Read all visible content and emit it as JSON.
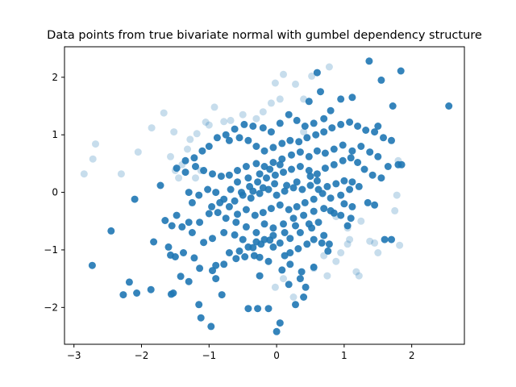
{
  "chart_data": {
    "type": "scatter",
    "title": "Data points from true bivariate normal with gumbel dependency structure",
    "xlabel": "",
    "ylabel": "",
    "xlim": [
      -3.14,
      2.78
    ],
    "ylim": [
      -2.64,
      2.53
    ],
    "xticks": [
      -3,
      -2,
      -1,
      0,
      1,
      2
    ],
    "yticks": [
      -2,
      -1,
      0,
      1,
      2
    ],
    "xtick_labels": [
      "−3",
      "−2",
      "−1",
      "0",
      "1",
      "2"
    ],
    "ytick_labels": [
      "−2",
      "−1",
      "0",
      "1",
      "2"
    ],
    "grid": false,
    "legend": null,
    "point_color": "#1f77b4",
    "series": [
      {
        "opacity": 0.9,
        "points": [
          [
            -2.73,
            -1.27
          ],
          [
            -2.27,
            -1.78
          ],
          [
            -2.18,
            -1.56
          ],
          [
            -2.07,
            -1.75
          ],
          [
            -1.86,
            -1.69
          ],
          [
            -1.56,
            -1.77
          ],
          [
            -1.53,
            -1.75
          ],
          [
            -1.15,
            -1.95
          ],
          [
            -1.12,
            -2.18
          ],
          [
            -0.97,
            -2.33
          ],
          [
            -0.81,
            -1.78
          ],
          [
            -1.3,
            -1.55
          ],
          [
            -1.42,
            -1.46
          ],
          [
            -0.9,
            -1.5
          ],
          [
            -0.95,
            -1.36
          ],
          [
            -0.78,
            -1.25
          ],
          [
            -1.82,
            -0.86
          ],
          [
            -1.6,
            -0.95
          ],
          [
            -1.57,
            -1.09
          ],
          [
            -1.5,
            -1.12
          ],
          [
            -1.38,
            -1.05
          ],
          [
            -1.22,
            -1.14
          ],
          [
            -1.14,
            -1.32
          ],
          [
            -0.9,
            -1.27
          ],
          [
            -0.47,
            -1.12
          ],
          [
            -0.33,
            -1.1
          ],
          [
            -0.25,
            -1.13
          ],
          [
            0.08,
            -1.35
          ],
          [
            0.2,
            -1.25
          ],
          [
            0.35,
            -1.5
          ],
          [
            0.43,
            -1.65
          ],
          [
            0.37,
            -1.38
          ],
          [
            0.55,
            -1.3
          ],
          [
            0.2,
            -1.05
          ],
          [
            0.32,
            -0.98
          ],
          [
            0.45,
            -0.9
          ],
          [
            0.55,
            -0.82
          ],
          [
            0.67,
            -0.88
          ],
          [
            0.76,
            -1.02
          ],
          [
            0.78,
            -0.9
          ],
          [
            0.7,
            -0.75
          ],
          [
            0.52,
            -0.62
          ],
          [
            0.35,
            -0.7
          ],
          [
            0.2,
            -0.8
          ],
          [
            0.05,
            -0.88
          ],
          [
            -0.1,
            -0.83
          ],
          [
            -0.23,
            -0.9
          ],
          [
            -0.35,
            -0.96
          ],
          [
            -0.5,
            -0.82
          ],
          [
            -0.62,
            -0.74
          ],
          [
            -0.78,
            -0.7
          ],
          [
            -0.95,
            -0.8
          ],
          [
            -1.08,
            -0.87
          ],
          [
            -1.25,
            -0.7
          ],
          [
            -1.4,
            -0.6
          ],
          [
            -1.55,
            -0.58
          ],
          [
            -1.65,
            -0.49
          ],
          [
            -1.48,
            -0.4
          ],
          [
            -1.3,
            -0.52
          ],
          [
            -1.14,
            -0.52
          ],
          [
            -1.0,
            -0.37
          ],
          [
            -0.87,
            -0.35
          ],
          [
            -0.75,
            -0.45
          ],
          [
            -0.6,
            -0.52
          ],
          [
            -0.45,
            -0.6
          ],
          [
            -0.3,
            -0.7
          ],
          [
            -0.18,
            -0.55
          ],
          [
            -0.05,
            -0.62
          ],
          [
            0.1,
            -0.55
          ],
          [
            0.25,
            -0.45
          ],
          [
            0.4,
            -0.4
          ],
          [
            0.55,
            -0.33
          ],
          [
            0.7,
            -0.28
          ],
          [
            0.85,
            -0.36
          ],
          [
            1.0,
            -0.2
          ],
          [
            1.12,
            -0.25
          ],
          [
            1.35,
            -0.18
          ],
          [
            1.45,
            -0.22
          ],
          [
            1.6,
            -0.82
          ],
          [
            1.7,
            -0.82
          ],
          [
            -2.45,
            -0.67
          ],
          [
            -2.1,
            -0.12
          ],
          [
            -1.72,
            0.12
          ],
          [
            -1.3,
            0.0
          ],
          [
            -1.25,
            -0.18
          ],
          [
            -1.15,
            -0.05
          ],
          [
            -1.02,
            0.05
          ],
          [
            -0.9,
            0.0
          ],
          [
            -0.78,
            -0.12
          ],
          [
            -0.62,
            -0.15
          ],
          [
            -0.5,
            -0.05
          ],
          [
            -0.38,
            -0.1
          ],
          [
            -0.25,
            -0.02
          ],
          [
            -0.12,
            0.05
          ],
          [
            0.0,
            -0.05
          ],
          [
            0.12,
            0.02
          ],
          [
            0.25,
            0.08
          ],
          [
            0.38,
            0.05
          ],
          [
            0.5,
            0.12
          ],
          [
            0.62,
            0.05
          ],
          [
            0.75,
            0.1
          ],
          [
            0.88,
            0.15
          ],
          [
            1.0,
            0.2
          ],
          [
            1.12,
            0.18
          ],
          [
            1.22,
            0.1
          ],
          [
            1.08,
            0.05
          ],
          [
            0.95,
            -0.05
          ],
          [
            0.8,
            -0.1
          ],
          [
            0.68,
            -0.02
          ],
          [
            0.55,
            -0.12
          ],
          [
            0.42,
            -0.18
          ],
          [
            0.3,
            -0.25
          ],
          [
            0.18,
            -0.3
          ],
          [
            0.05,
            -0.22
          ],
          [
            -0.08,
            -0.28
          ],
          [
            -0.2,
            -0.35
          ],
          [
            -0.32,
            -0.4
          ],
          [
            -0.45,
            -0.3
          ],
          [
            -0.58,
            -0.38
          ],
          [
            -0.7,
            -0.25
          ],
          [
            -0.84,
            -0.18
          ],
          [
            -0.96,
            -0.25
          ],
          [
            -0.4,
            0.1
          ],
          [
            -0.28,
            0.18
          ],
          [
            -0.15,
            0.25
          ],
          [
            -0.02,
            0.3
          ],
          [
            0.1,
            0.35
          ],
          [
            0.22,
            0.4
          ],
          [
            0.35,
            0.45
          ],
          [
            0.48,
            0.38
          ],
          [
            0.6,
            0.32
          ],
          [
            0.72,
            0.42
          ],
          [
            0.85,
            0.48
          ],
          [
            0.98,
            0.55
          ],
          [
            1.1,
            0.6
          ],
          [
            1.2,
            0.52
          ],
          [
            1.3,
            0.4
          ],
          [
            1.42,
            0.3
          ],
          [
            1.55,
            0.25
          ],
          [
            1.65,
            0.45
          ],
          [
            1.8,
            0.48
          ],
          [
            1.5,
            0.62
          ],
          [
            1.38,
            0.7
          ],
          [
            1.25,
            0.8
          ],
          [
            1.12,
            0.72
          ],
          [
            0.98,
            0.82
          ],
          [
            0.85,
            0.75
          ],
          [
            0.72,
            0.68
          ],
          [
            0.6,
            0.72
          ],
          [
            0.48,
            0.62
          ],
          [
            0.35,
            0.7
          ],
          [
            0.22,
            0.65
          ],
          [
            0.08,
            0.58
          ],
          [
            -0.05,
            0.52
          ],
          [
            -0.18,
            0.45
          ],
          [
            -0.3,
            0.5
          ],
          [
            -0.45,
            0.45
          ],
          [
            -0.58,
            0.38
          ],
          [
            -0.7,
            0.3
          ],
          [
            -0.82,
            0.28
          ],
          [
            -0.95,
            0.32
          ],
          [
            -1.08,
            0.38
          ],
          [
            -1.2,
            0.45
          ],
          [
            -1.35,
            0.35
          ],
          [
            -1.48,
            0.42
          ],
          [
            -0.7,
            0.9
          ],
          [
            -0.55,
            0.95
          ],
          [
            -0.42,
            0.9
          ],
          [
            -0.3,
            0.8
          ],
          [
            -0.18,
            0.72
          ],
          [
            -0.05,
            0.78
          ],
          [
            0.08,
            0.85
          ],
          [
            0.2,
            0.9
          ],
          [
            0.33,
            0.88
          ],
          [
            0.45,
            0.95
          ],
          [
            0.58,
            1.0
          ],
          [
            0.7,
            1.05
          ],
          [
            0.82,
            1.12
          ],
          [
            0.95,
            1.18
          ],
          [
            1.08,
            1.22
          ],
          [
            1.2,
            1.15
          ],
          [
            1.32,
            1.08
          ],
          [
            1.45,
            1.05
          ],
          [
            1.58,
            0.95
          ],
          [
            1.7,
            0.9
          ],
          [
            1.5,
            1.15
          ],
          [
            1.55,
            1.95
          ],
          [
            1.72,
            1.5
          ],
          [
            1.84,
            2.11
          ],
          [
            1.37,
            2.28
          ],
          [
            1.12,
            1.65
          ],
          [
            0.95,
            1.62
          ],
          [
            0.8,
            1.42
          ],
          [
            0.7,
            1.28
          ],
          [
            0.55,
            1.2
          ],
          [
            0.42,
            1.15
          ],
          [
            0.3,
            1.25
          ],
          [
            0.18,
            1.35
          ],
          [
            0.05,
            1.2
          ],
          [
            -0.08,
            1.05
          ],
          [
            -0.2,
            1.12
          ],
          [
            -0.35,
            1.15
          ],
          [
            -0.48,
            1.18
          ],
          [
            -0.62,
            1.1
          ],
          [
            -0.75,
            1.0
          ],
          [
            -0.88,
            0.95
          ],
          [
            -1.0,
            0.8
          ],
          [
            -1.1,
            0.72
          ],
          [
            -1.22,
            0.6
          ],
          [
            -1.35,
            0.55
          ],
          [
            0.65,
            1.75
          ],
          [
            0.6,
            2.08
          ],
          [
            0.48,
            1.58
          ],
          [
            2.55,
            1.5
          ],
          [
            1.85,
            0.48
          ],
          [
            0.8,
            -0.32
          ],
          [
            0.95,
            -0.4
          ],
          [
            1.1,
            -0.45
          ],
          [
            1.05,
            -0.58
          ],
          [
            0.62,
            -0.52
          ],
          [
            0.48,
            -0.55
          ],
          [
            0.28,
            -0.58
          ],
          [
            0.12,
            -0.7
          ],
          [
            -0.05,
            -0.75
          ],
          [
            -0.18,
            -0.82
          ],
          [
            -0.3,
            -0.86
          ],
          [
            -0.42,
            -0.95
          ],
          [
            -0.55,
            -1.02
          ],
          [
            -0.7,
            -1.05
          ],
          [
            -0.05,
            -0.95
          ],
          [
            0.12,
            -1.1
          ],
          [
            -0.12,
            -1.2
          ],
          [
            -0.25,
            -1.45
          ],
          [
            -0.6,
            -1.15
          ],
          [
            0.18,
            -1.6
          ],
          [
            0.4,
            -1.82
          ],
          [
            0.28,
            -1.95
          ],
          [
            0.05,
            -2.27
          ],
          [
            0.0,
            -2.42
          ],
          [
            -0.42,
            -2.02
          ],
          [
            -0.28,
            -2.02
          ],
          [
            -0.12,
            -2.02
          ],
          [
            0.6,
            0.2
          ],
          [
            0.5,
            0.28
          ],
          [
            0.3,
            0.18
          ],
          [
            0.15,
            0.12
          ],
          [
            -0.03,
            0.15
          ],
          [
            -0.2,
            0.08
          ],
          [
            -0.35,
            0.02
          ],
          [
            -0.52,
            0.0
          ],
          [
            -0.68,
            0.05
          ],
          [
            -0.58,
            0.18
          ],
          [
            -0.42,
            0.25
          ],
          [
            -0.25,
            0.32
          ],
          [
            -0.1,
            0.4
          ],
          [
            0.05,
            0.48
          ]
        ]
      },
      {
        "opacity": 0.25,
        "points": [
          [
            -2.85,
            0.32
          ],
          [
            -2.72,
            0.58
          ],
          [
            -2.68,
            0.84
          ],
          [
            -2.3,
            0.32
          ],
          [
            -2.05,
            0.7
          ],
          [
            -1.85,
            1.12
          ],
          [
            -1.67,
            1.38
          ],
          [
            -1.52,
            1.05
          ],
          [
            -1.57,
            0.62
          ],
          [
            -1.5,
            0.38
          ],
          [
            -1.4,
            0.48
          ],
          [
            -1.32,
            0.75
          ],
          [
            -1.28,
            0.92
          ],
          [
            -1.18,
            1.02
          ],
          [
            -1.05,
            1.22
          ],
          [
            -1.0,
            1.17
          ],
          [
            -0.92,
            1.48
          ],
          [
            -0.78,
            1.23
          ],
          [
            -0.68,
            1.25
          ],
          [
            -0.5,
            1.35
          ],
          [
            -0.3,
            1.28
          ],
          [
            -0.2,
            1.4
          ],
          [
            -0.08,
            1.55
          ],
          [
            0.05,
            1.62
          ],
          [
            -0.02,
            1.9
          ],
          [
            0.1,
            2.05
          ],
          [
            0.28,
            1.88
          ],
          [
            0.4,
            1.62
          ],
          [
            0.52,
            2.02
          ],
          [
            0.78,
            2.18
          ],
          [
            0.4,
            1.05
          ],
          [
            -1.12,
            0.38
          ],
          [
            -1.2,
            0.25
          ],
          [
            -1.45,
            0.25
          ],
          [
            1.08,
            -0.82
          ],
          [
            1.05,
            -0.9
          ],
          [
            0.88,
            -1.2
          ],
          [
            1.18,
            -1.38
          ],
          [
            1.22,
            -1.45
          ],
          [
            0.75,
            -1.45
          ],
          [
            0.55,
            -1.32
          ],
          [
            0.7,
            -1.1
          ],
          [
            0.95,
            -1.05
          ],
          [
            1.38,
            -0.85
          ],
          [
            1.5,
            -1.05
          ],
          [
            1.82,
            -0.92
          ],
          [
            1.45,
            -0.88
          ],
          [
            0.1,
            -1.5
          ],
          [
            -0.02,
            -1.65
          ],
          [
            0.25,
            -1.82
          ],
          [
            1.75,
            -0.32
          ],
          [
            1.78,
            -0.05
          ],
          [
            1.8,
            0.55
          ],
          [
            0.88,
            -0.42
          ],
          [
            1.05,
            -0.62
          ],
          [
            1.25,
            -0.5
          ]
        ]
      }
    ]
  }
}
